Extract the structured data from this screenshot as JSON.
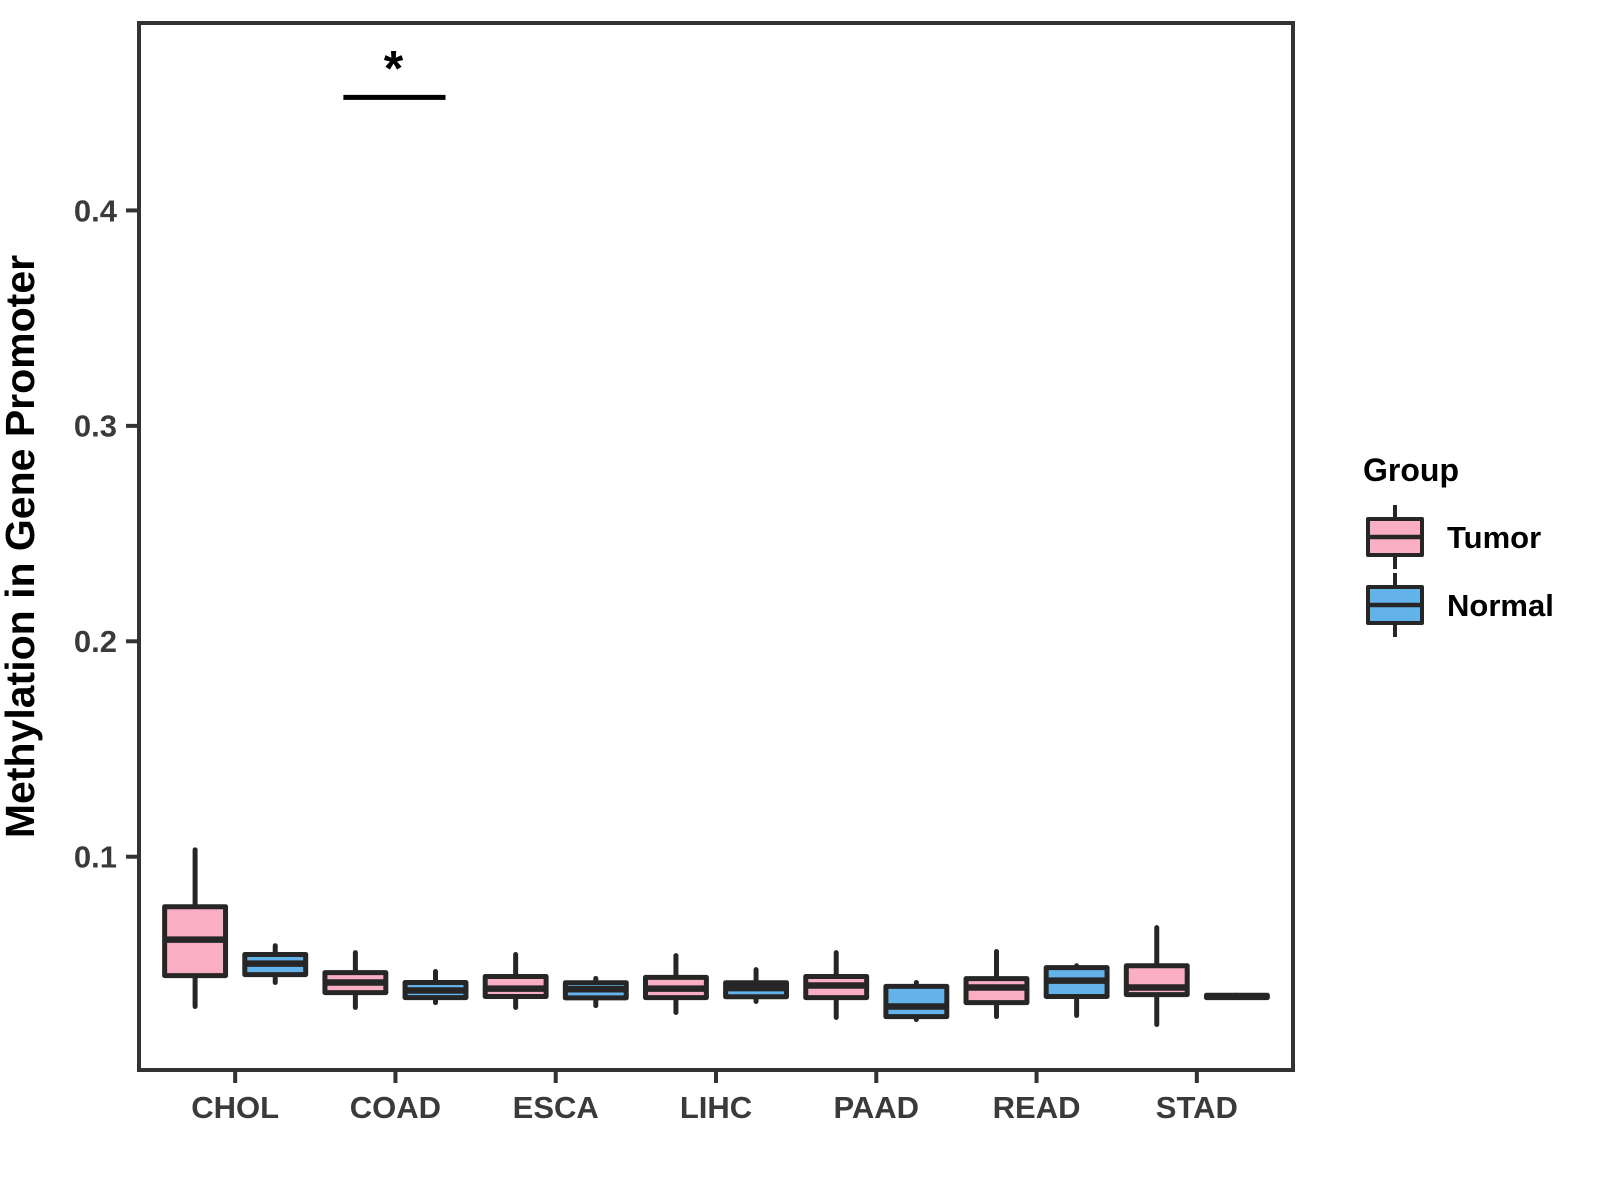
{
  "chart_data": {
    "type": "boxplot",
    "title": "",
    "xlabel": "",
    "ylabel": "Methylation in Gene Promoter",
    "categories": [
      "CHOL",
      "COAD",
      "ESCA",
      "LIHC",
      "PAAD",
      "READ",
      "STAD"
    ],
    "y_ticks": [
      "0.1",
      "0.2",
      "0.3",
      "0.4"
    ],
    "y_tick_values": [
      0.1,
      0.2,
      0.3,
      0.4
    ],
    "ylim": [
      0.001,
      0.487
    ],
    "grid": false,
    "legend": {
      "title": "Group",
      "position": "right",
      "entries": [
        {
          "label": "Tumor",
          "color": "#FAAEC3"
        },
        {
          "label": "Normal",
          "color": "#64B2EA"
        }
      ]
    },
    "colors": {
      "tumor_fill": "#FAAEC3",
      "normal_fill": "#64B2EA",
      "box_stroke": "#262626",
      "axis_line": "#333333",
      "tick_label": "#3A3A3A",
      "title_text": "#000000"
    },
    "series": [
      {
        "name": "Tumor",
        "color": "#FAAEC3",
        "boxes": [
          {
            "category": "CHOL",
            "whisker_low": 0.0305,
            "q1": 0.0448,
            "median": 0.0615,
            "q3": 0.0768,
            "whisker_high": 0.1032
          },
          {
            "category": "COAD",
            "whisker_low": 0.03,
            "q1": 0.0369,
            "median": 0.0416,
            "q3": 0.0462,
            "whisker_high": 0.0555
          },
          {
            "category": "ESCA",
            "whisker_low": 0.03,
            "q1": 0.0351,
            "median": 0.0388,
            "q3": 0.0444,
            "whisker_high": 0.0546
          },
          {
            "category": "LIHC",
            "whisker_low": 0.0277,
            "q1": 0.0346,
            "median": 0.0388,
            "q3": 0.044,
            "whisker_high": 0.0541
          },
          {
            "category": "PAAD",
            "whisker_low": 0.0254,
            "q1": 0.0346,
            "median": 0.0402,
            "q3": 0.0444,
            "whisker_high": 0.0555
          },
          {
            "category": "READ",
            "whisker_low": 0.0258,
            "q1": 0.0323,
            "median": 0.0393,
            "q3": 0.0434,
            "whisker_high": 0.056
          },
          {
            "category": "STAD",
            "whisker_low": 0.0221,
            "q1": 0.036,
            "median": 0.0393,
            "q3": 0.0494,
            "whisker_high": 0.0671
          }
        ]
      },
      {
        "name": "Normal",
        "color": "#64B2EA",
        "boxes": [
          {
            "category": "CHOL",
            "whisker_low": 0.0416,
            "q1": 0.0453,
            "median": 0.0504,
            "q3": 0.0546,
            "whisker_high": 0.0587
          },
          {
            "category": "COAD",
            "whisker_low": 0.0323,
            "q1": 0.0346,
            "median": 0.0379,
            "q3": 0.0416,
            "whisker_high": 0.0467
          },
          {
            "category": "ESCA",
            "whisker_low": 0.0309,
            "q1": 0.0345,
            "median": 0.0385,
            "q3": 0.0415,
            "whisker_high": 0.0435
          },
          {
            "category": "LIHC",
            "whisker_low": 0.0328,
            "q1": 0.035,
            "median": 0.039,
            "q3": 0.0415,
            "whisker_high": 0.0476
          },
          {
            "category": "PAAD",
            "whisker_low": 0.0244,
            "q1": 0.0258,
            "median": 0.0305,
            "q3": 0.0398,
            "whisker_high": 0.0416
          },
          {
            "category": "READ",
            "whisker_low": 0.0263,
            "q1": 0.0351,
            "median": 0.0425,
            "q3": 0.0485,
            "whisker_high": 0.0494
          },
          {
            "category": "STAD",
            "whisker_low": 0.0346,
            "q1": 0.0346,
            "median": 0.0352,
            "q3": 0.0357,
            "whisker_high": 0.0357
          }
        ]
      }
    ],
    "annotations": [
      {
        "type": "significance",
        "category": "COAD",
        "label": "*",
        "line_y": 0.4525
      }
    ]
  }
}
